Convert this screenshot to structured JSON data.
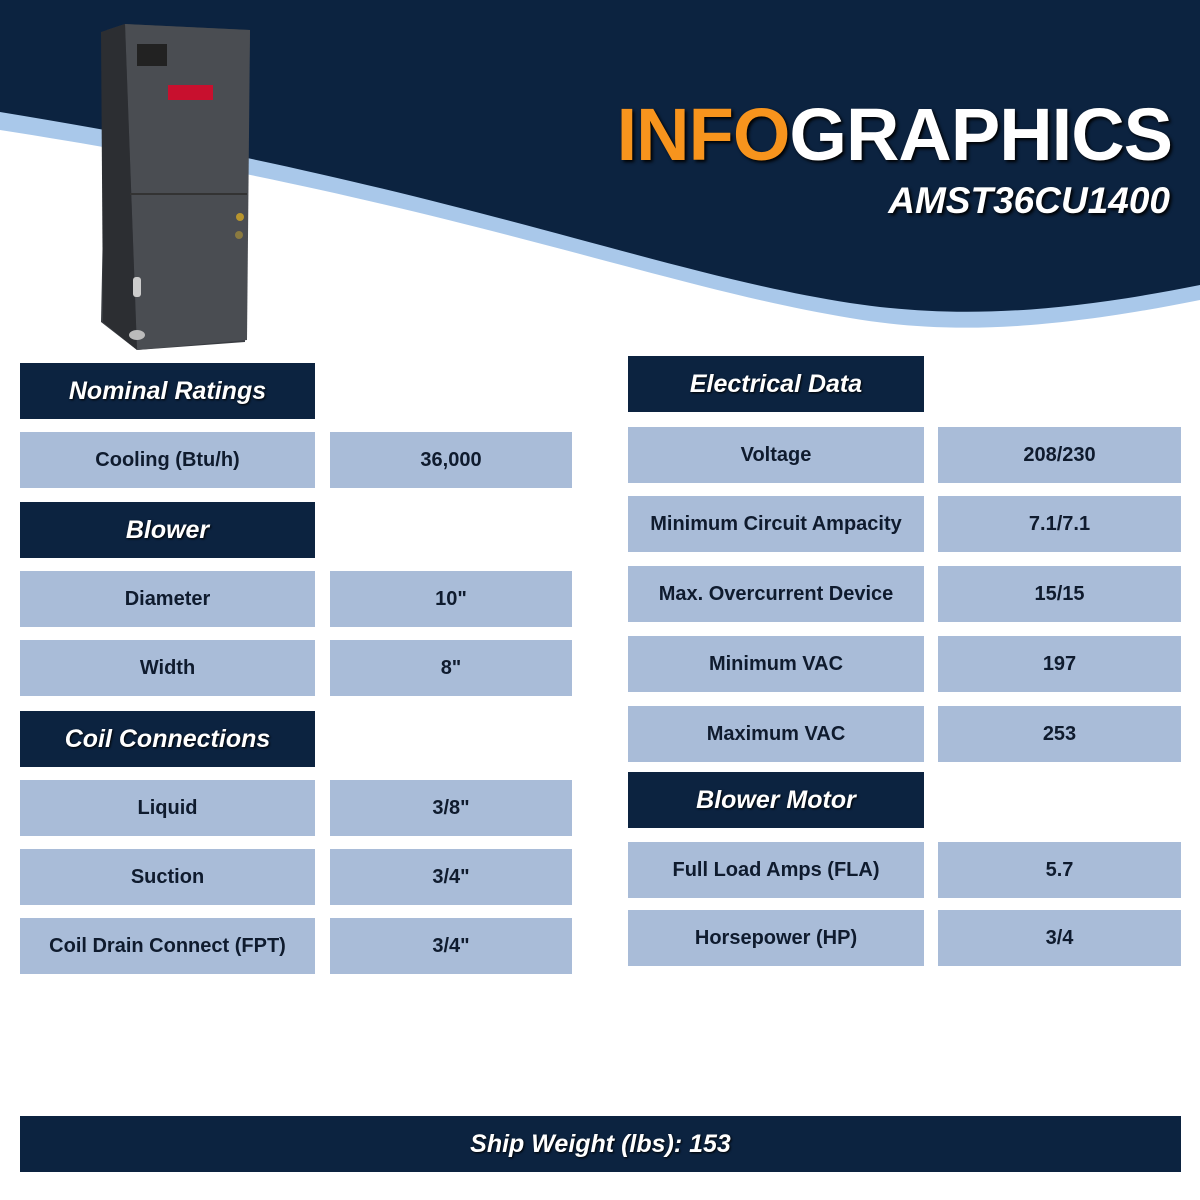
{
  "header": {
    "title_accent": "INFO",
    "title_rest": "GRAPHICS",
    "model": "AMST36CU1400"
  },
  "colors": {
    "navy": "#0c2340",
    "accent": "#f7941d",
    "cell": "#a9bcd8",
    "wave": "#a9c8ea"
  },
  "product_image": "air-handler-unit",
  "left": {
    "nominal": {
      "title": "Nominal Ratings",
      "rows": [
        {
          "label": "Cooling (Btu/h)",
          "value": "36,000"
        }
      ]
    },
    "blower": {
      "title": "Blower",
      "rows": [
        {
          "label": "Diameter",
          "value": "10\""
        },
        {
          "label": "Width",
          "value": "8\""
        }
      ]
    },
    "coil": {
      "title": "Coil Connections",
      "rows": [
        {
          "label": "Liquid",
          "value": "3/8\""
        },
        {
          "label": "Suction",
          "value": "3/4\""
        },
        {
          "label": "Coil Drain Connect (FPT)",
          "value": "3/4\""
        }
      ]
    }
  },
  "right": {
    "electrical": {
      "title": "Electrical Data",
      "rows": [
        {
          "label": "Voltage",
          "value": "208/230"
        },
        {
          "label": "Minimum Circuit Ampacity",
          "value": "7.1/7.1"
        },
        {
          "label": "Max. Overcurrent Device",
          "value": "15/15"
        },
        {
          "label": "Minimum VAC",
          "value": "197"
        },
        {
          "label": "Maximum VAC",
          "value": "253"
        }
      ]
    },
    "motor": {
      "title": "Blower Motor",
      "rows": [
        {
          "label": "Full Load Amps (FLA)",
          "value": "5.7"
        },
        {
          "label": "Horsepower (HP)",
          "value": "3/4"
        }
      ]
    }
  },
  "footer": {
    "ship_weight": "Ship Weight (lbs): 153"
  }
}
